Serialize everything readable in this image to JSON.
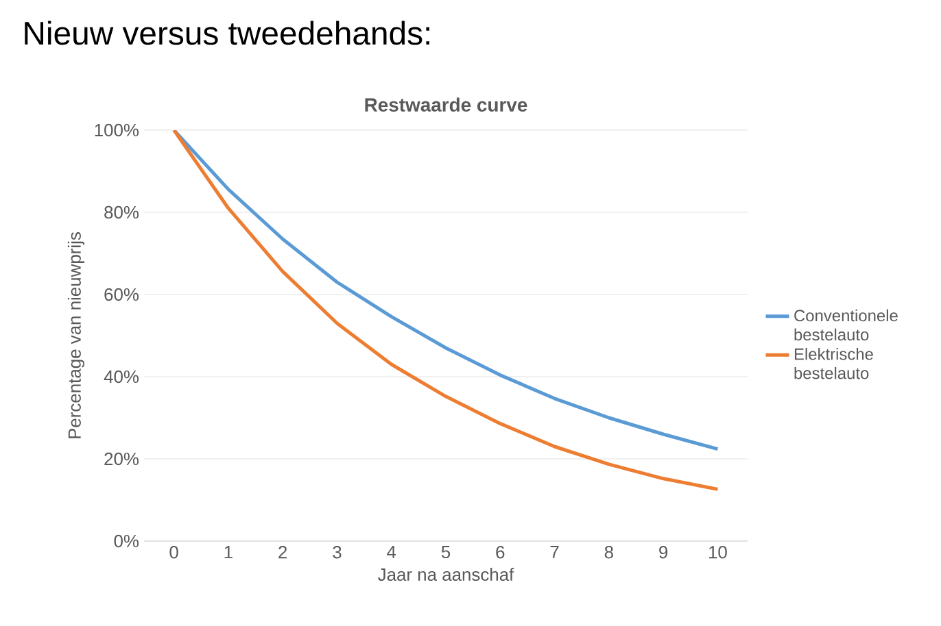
{
  "chart_data": {
    "type": "line",
    "title": "Restwaarde curve",
    "annotations": [
      "Nieuw versus tweedehands:"
    ],
    "xlabel": "Jaar na aanschaf",
    "ylabel": "Percentage van nieuwprijs",
    "categories": [
      "0",
      "1",
      "2",
      "3",
      "4",
      "5",
      "6",
      "7",
      "8",
      "9",
      "10"
    ],
    "series": [
      {
        "name": "Conventionele bestelauto",
        "color": "#5b9bd5",
        "values": [
          100,
          85.6,
          73.5,
          63,
          54.6,
          47,
          40.4,
          34.7,
          30,
          26,
          22.4
        ]
      },
      {
        "name": "Elektrische bestelauto",
        "color": "#ed7d31",
        "values": [
          100,
          81,
          65.6,
          53,
          43,
          35.2,
          28.6,
          23,
          18.7,
          15.2,
          12.6
        ]
      }
    ],
    "ylim": [
      0,
      100
    ],
    "yticks": [
      {
        "value": 0,
        "label": "0%"
      },
      {
        "value": 20,
        "label": "20%"
      },
      {
        "value": 40,
        "label": "40%"
      },
      {
        "value": 60,
        "label": "60%"
      },
      {
        "value": 80,
        "label": "80%"
      },
      {
        "value": 100,
        "label": "100%"
      }
    ],
    "grid": "y",
    "legend": "right",
    "marker": "none",
    "line_style": "solid"
  }
}
